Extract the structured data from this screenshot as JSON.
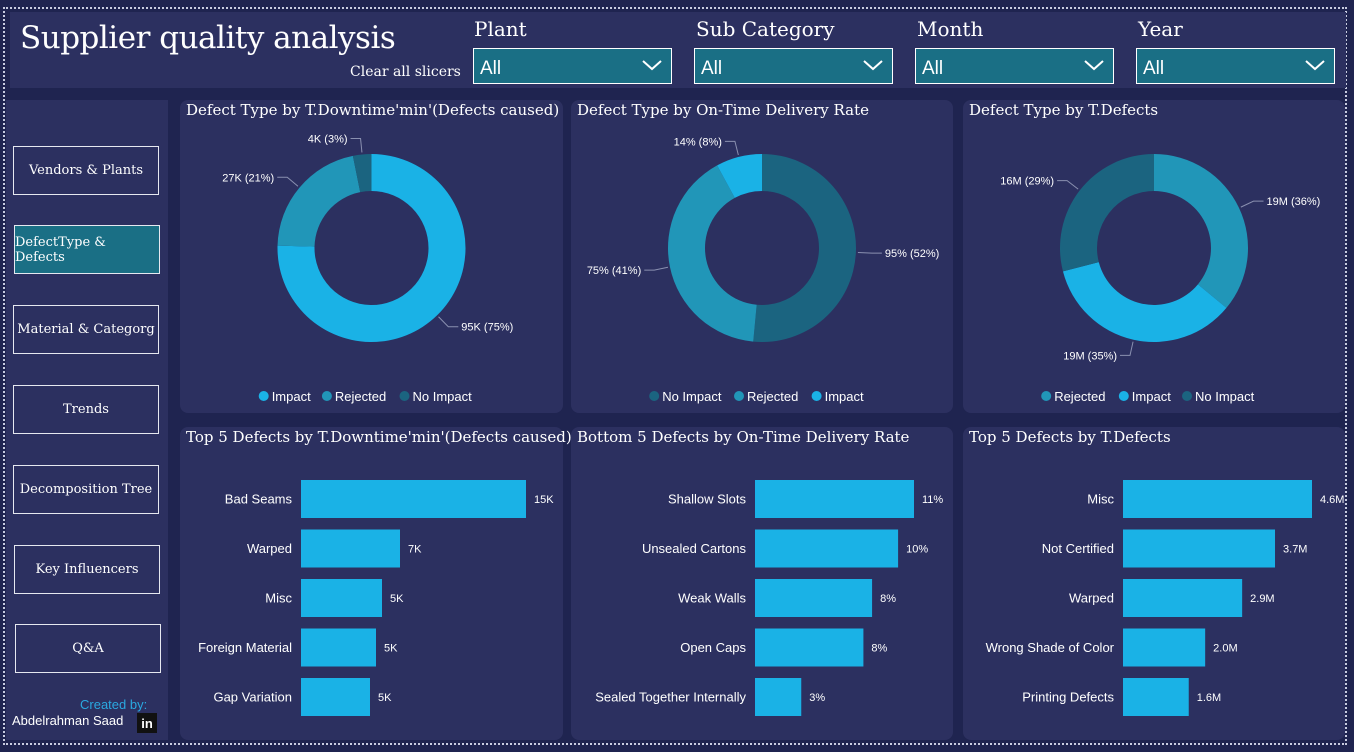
{
  "header": {
    "title": "Supplier quality analysis",
    "clear_label": "Clear all slicers",
    "slicers": [
      {
        "label": "Plant",
        "value": "All"
      },
      {
        "label": "Sub Category",
        "value": "All"
      },
      {
        "label": "Month",
        "value": "All"
      },
      {
        "label": "Year",
        "value": "All"
      }
    ]
  },
  "nav": {
    "items": [
      {
        "label": "Vendors & Plants",
        "active": false
      },
      {
        "label": "DefectType & Defects",
        "active": true
      },
      {
        "label": "Material & Categorg",
        "active": false
      },
      {
        "label": "Trends",
        "active": false
      },
      {
        "label": "Decomposition Tree",
        "active": false
      },
      {
        "label": "Key Influencers",
        "active": false
      },
      {
        "label": "Q&A",
        "active": false
      }
    ],
    "credit_label": "Created by:",
    "credit_name": "Abdelrahman Saad",
    "linkedin_icon": "in"
  },
  "colors": {
    "Impact": "#1ab2e6",
    "Rejected": "#2196b8",
    "No Impact": "#1b6480",
    "bar": "#1ab2e6"
  },
  "chart_data": [
    {
      "type": "pie",
      "title": "Defect Type by T.Downtime'min'(Defects caused)",
      "legend": [
        "Impact",
        "Rejected",
        "No Impact"
      ],
      "slices": [
        {
          "name": "Impact",
          "value": 95,
          "label": "95K (75%)"
        },
        {
          "name": "Rejected",
          "value": 27,
          "label": "27K (21%)"
        },
        {
          "name": "No Impact",
          "value": 4,
          "label": "4K (3%)"
        }
      ]
    },
    {
      "type": "pie",
      "title": "Defect Type by On-Time Delivery Rate",
      "legend": [
        "No Impact",
        "Rejected",
        "Impact"
      ],
      "slices": [
        {
          "name": "No Impact",
          "value": 52,
          "label": "95% (52%)"
        },
        {
          "name": "Rejected",
          "value": 41,
          "label": "75% (41%)"
        },
        {
          "name": "Impact",
          "value": 8,
          "label": "14% (8%)"
        }
      ]
    },
    {
      "type": "pie",
      "title": "Defect Type by T.Defects",
      "legend": [
        "Rejected",
        "Impact",
        "No Impact"
      ],
      "slices": [
        {
          "name": "Rejected",
          "value": 36,
          "label": "19M (36%)"
        },
        {
          "name": "Impact",
          "value": 35,
          "label": "19M (35%)"
        },
        {
          "name": "No Impact",
          "value": 29,
          "label": "16M (29%)"
        }
      ]
    },
    {
      "type": "bar",
      "orientation": "horizontal",
      "title": "Top 5 Defects by T.Downtime'min'(Defects caused)",
      "categories": [
        "Bad Seams",
        "Warped",
        "Misc",
        "Foreign Material",
        "Gap Variation"
      ],
      "values": [
        15,
        6.6,
        5.4,
        5.0,
        4.6
      ],
      "labels": [
        "15K",
        "7K",
        "5K",
        "5K",
        "5K"
      ],
      "xlim": [
        0,
        15
      ]
    },
    {
      "type": "bar",
      "orientation": "horizontal",
      "title": "Bottom 5 Defects by On-Time Delivery Rate",
      "categories": [
        "Shallow Slots",
        "Unsealed Cartons",
        "Weak Walls",
        "Open Caps",
        "Sealed Together Internally"
      ],
      "values": [
        11,
        9.9,
        8.1,
        7.5,
        3.2
      ],
      "labels": [
        "11%",
        "10%",
        "8%",
        "8%",
        "3%"
      ],
      "xlim": [
        0,
        11
      ]
    },
    {
      "type": "bar",
      "orientation": "horizontal",
      "title": "Top 5 Defects by T.Defects",
      "categories": [
        "Misc",
        "Not Certified",
        "Warped",
        "Wrong Shade of Color",
        "Printing Defects"
      ],
      "values": [
        4.6,
        3.7,
        2.9,
        2.0,
        1.6
      ],
      "labels": [
        "4.6M",
        "3.7M",
        "2.9M",
        "2.0M",
        "1.6M"
      ],
      "xlim": [
        0,
        4.6
      ]
    }
  ]
}
